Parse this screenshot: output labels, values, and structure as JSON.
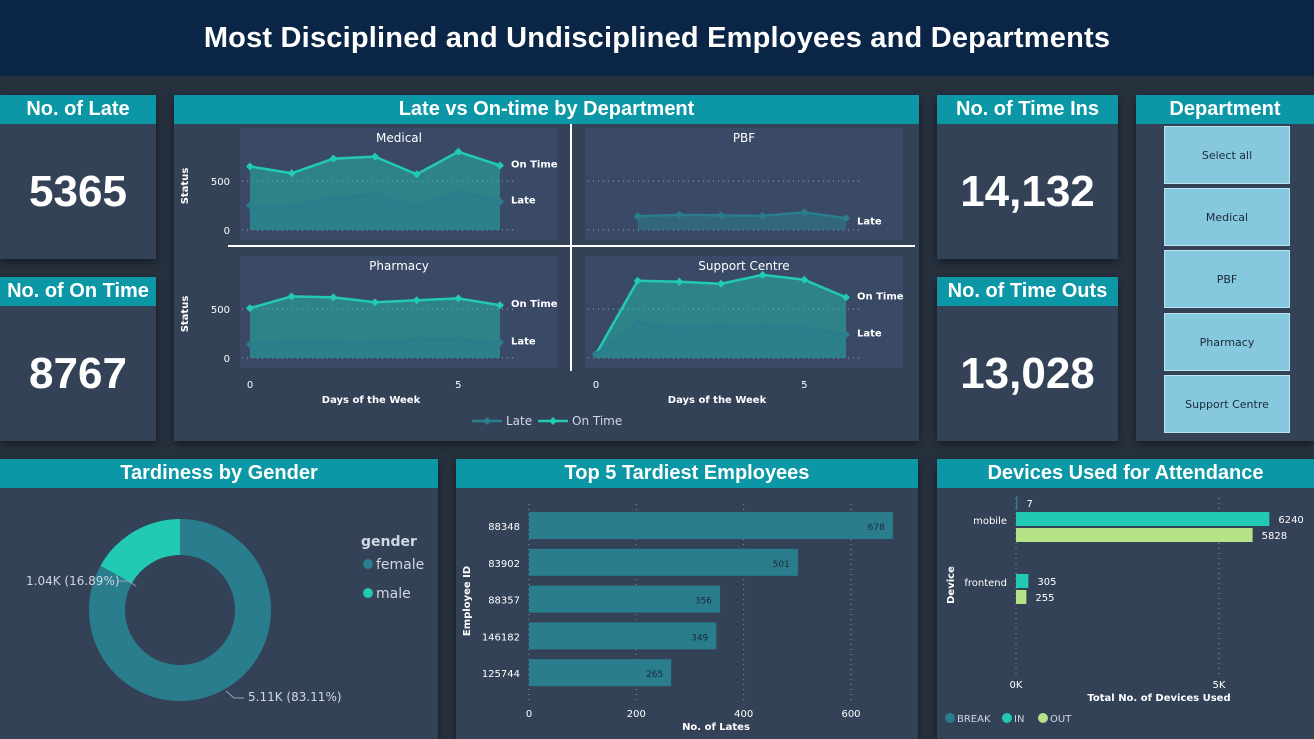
{
  "title": "Most Disciplined and Undisciplined Employees and Departments",
  "kpis": {
    "late": {
      "label": "No. of Late",
      "value": "5365"
    },
    "on_time": {
      "label": "No. of On Time",
      "value": "8767"
    },
    "time_ins": {
      "label": "No. of Time Ins",
      "value": "14,132"
    },
    "time_outs": {
      "label": "No. of Time Outs",
      "value": "13,028"
    }
  },
  "slicer": {
    "title": "Department",
    "items": [
      "Select all",
      "Medical",
      "PBF",
      "Pharmacy",
      "Support Centre"
    ]
  },
  "colors": {
    "late": "#2a7d8c",
    "on_time": "#22c9b3",
    "out": "#b6e388",
    "female": "#2a7d8c",
    "male": "#22c9b3"
  },
  "chart_data": [
    {
      "type": "line",
      "title": "Late vs On-time by Department",
      "xlabel": "Days of the Week",
      "ylabel": "Status",
      "legend": [
        "Late",
        "On Time"
      ],
      "legend_position": "bottom",
      "x": [
        0,
        1,
        2,
        3,
        4,
        5,
        6
      ],
      "xticks": [
        "0",
        "5"
      ],
      "yticks": [
        "0",
        "500"
      ],
      "ylim": [
        0,
        900
      ],
      "facets": [
        {
          "name": "Medical",
          "series": [
            {
              "name": "Late",
              "values": [
                250,
                240,
                330,
                360,
                240,
                390,
                290
              ]
            },
            {
              "name": "On Time",
              "values": [
                650,
                580,
                730,
                750,
                570,
                800,
                660
              ]
            }
          ]
        },
        {
          "name": "PBF",
          "series": [
            {
              "name": "Late",
              "values": [
                null,
                140,
                155,
                150,
                145,
                180,
                120
              ]
            }
          ]
        },
        {
          "name": "Pharmacy",
          "series": [
            {
              "name": "Late",
              "values": [
                140,
                180,
                170,
                160,
                185,
                190,
                160
              ]
            },
            {
              "name": "On Time",
              "values": [
                510,
                630,
                620,
                570,
                590,
                610,
                540
              ]
            }
          ]
        },
        {
          "name": "Support Centre",
          "series": [
            {
              "name": "Late",
              "values": [
                40,
                360,
                310,
                330,
                330,
                310,
                240
              ]
            },
            {
              "name": "On Time",
              "values": [
                40,
                790,
                780,
                760,
                850,
                800,
                620
              ]
            }
          ]
        }
      ],
      "end_labels": [
        "On Time",
        "Late"
      ]
    },
    {
      "type": "pie",
      "title": "Tardiness by Gender",
      "legend_title": "gender",
      "legend_position": "right",
      "slices": [
        {
          "name": "female",
          "value": 5110,
          "label": "5.11K (83.11%)",
          "percent": 83.11
        },
        {
          "name": "male",
          "value": 1040,
          "label": "1.04K (16.89%)",
          "percent": 16.89
        }
      ]
    },
    {
      "type": "bar",
      "title": "Top 5 Tardiest Employees",
      "xlabel": "No. of Lates",
      "ylabel": "Employee ID",
      "categories": [
        "88348",
        "83902",
        "88357",
        "146182",
        "125744"
      ],
      "values": [
        678,
        501,
        356,
        349,
        265
      ],
      "xticks": [
        "0",
        "200",
        "400",
        "600"
      ],
      "xlim": [
        0,
        720
      ]
    },
    {
      "type": "bar",
      "title": "Devices Used for Attendance",
      "xlabel": "Total No. of Devices Used",
      "ylabel": "Device",
      "categories": [
        "mobile",
        "frontend"
      ],
      "series": [
        {
          "name": "BREAK",
          "values": [
            7,
            0
          ]
        },
        {
          "name": "IN",
          "values": [
            6240,
            305
          ]
        },
        {
          "name": "OUT",
          "values": [
            5828,
            255
          ]
        }
      ],
      "value_labels": [
        [
          "7",
          "6240",
          "5828"
        ],
        [
          "",
          "305",
          "255"
        ]
      ],
      "xticks": [
        "0K",
        "5K"
      ],
      "xlim": [
        0,
        7200
      ],
      "legend_position": "bottom-left"
    }
  ]
}
